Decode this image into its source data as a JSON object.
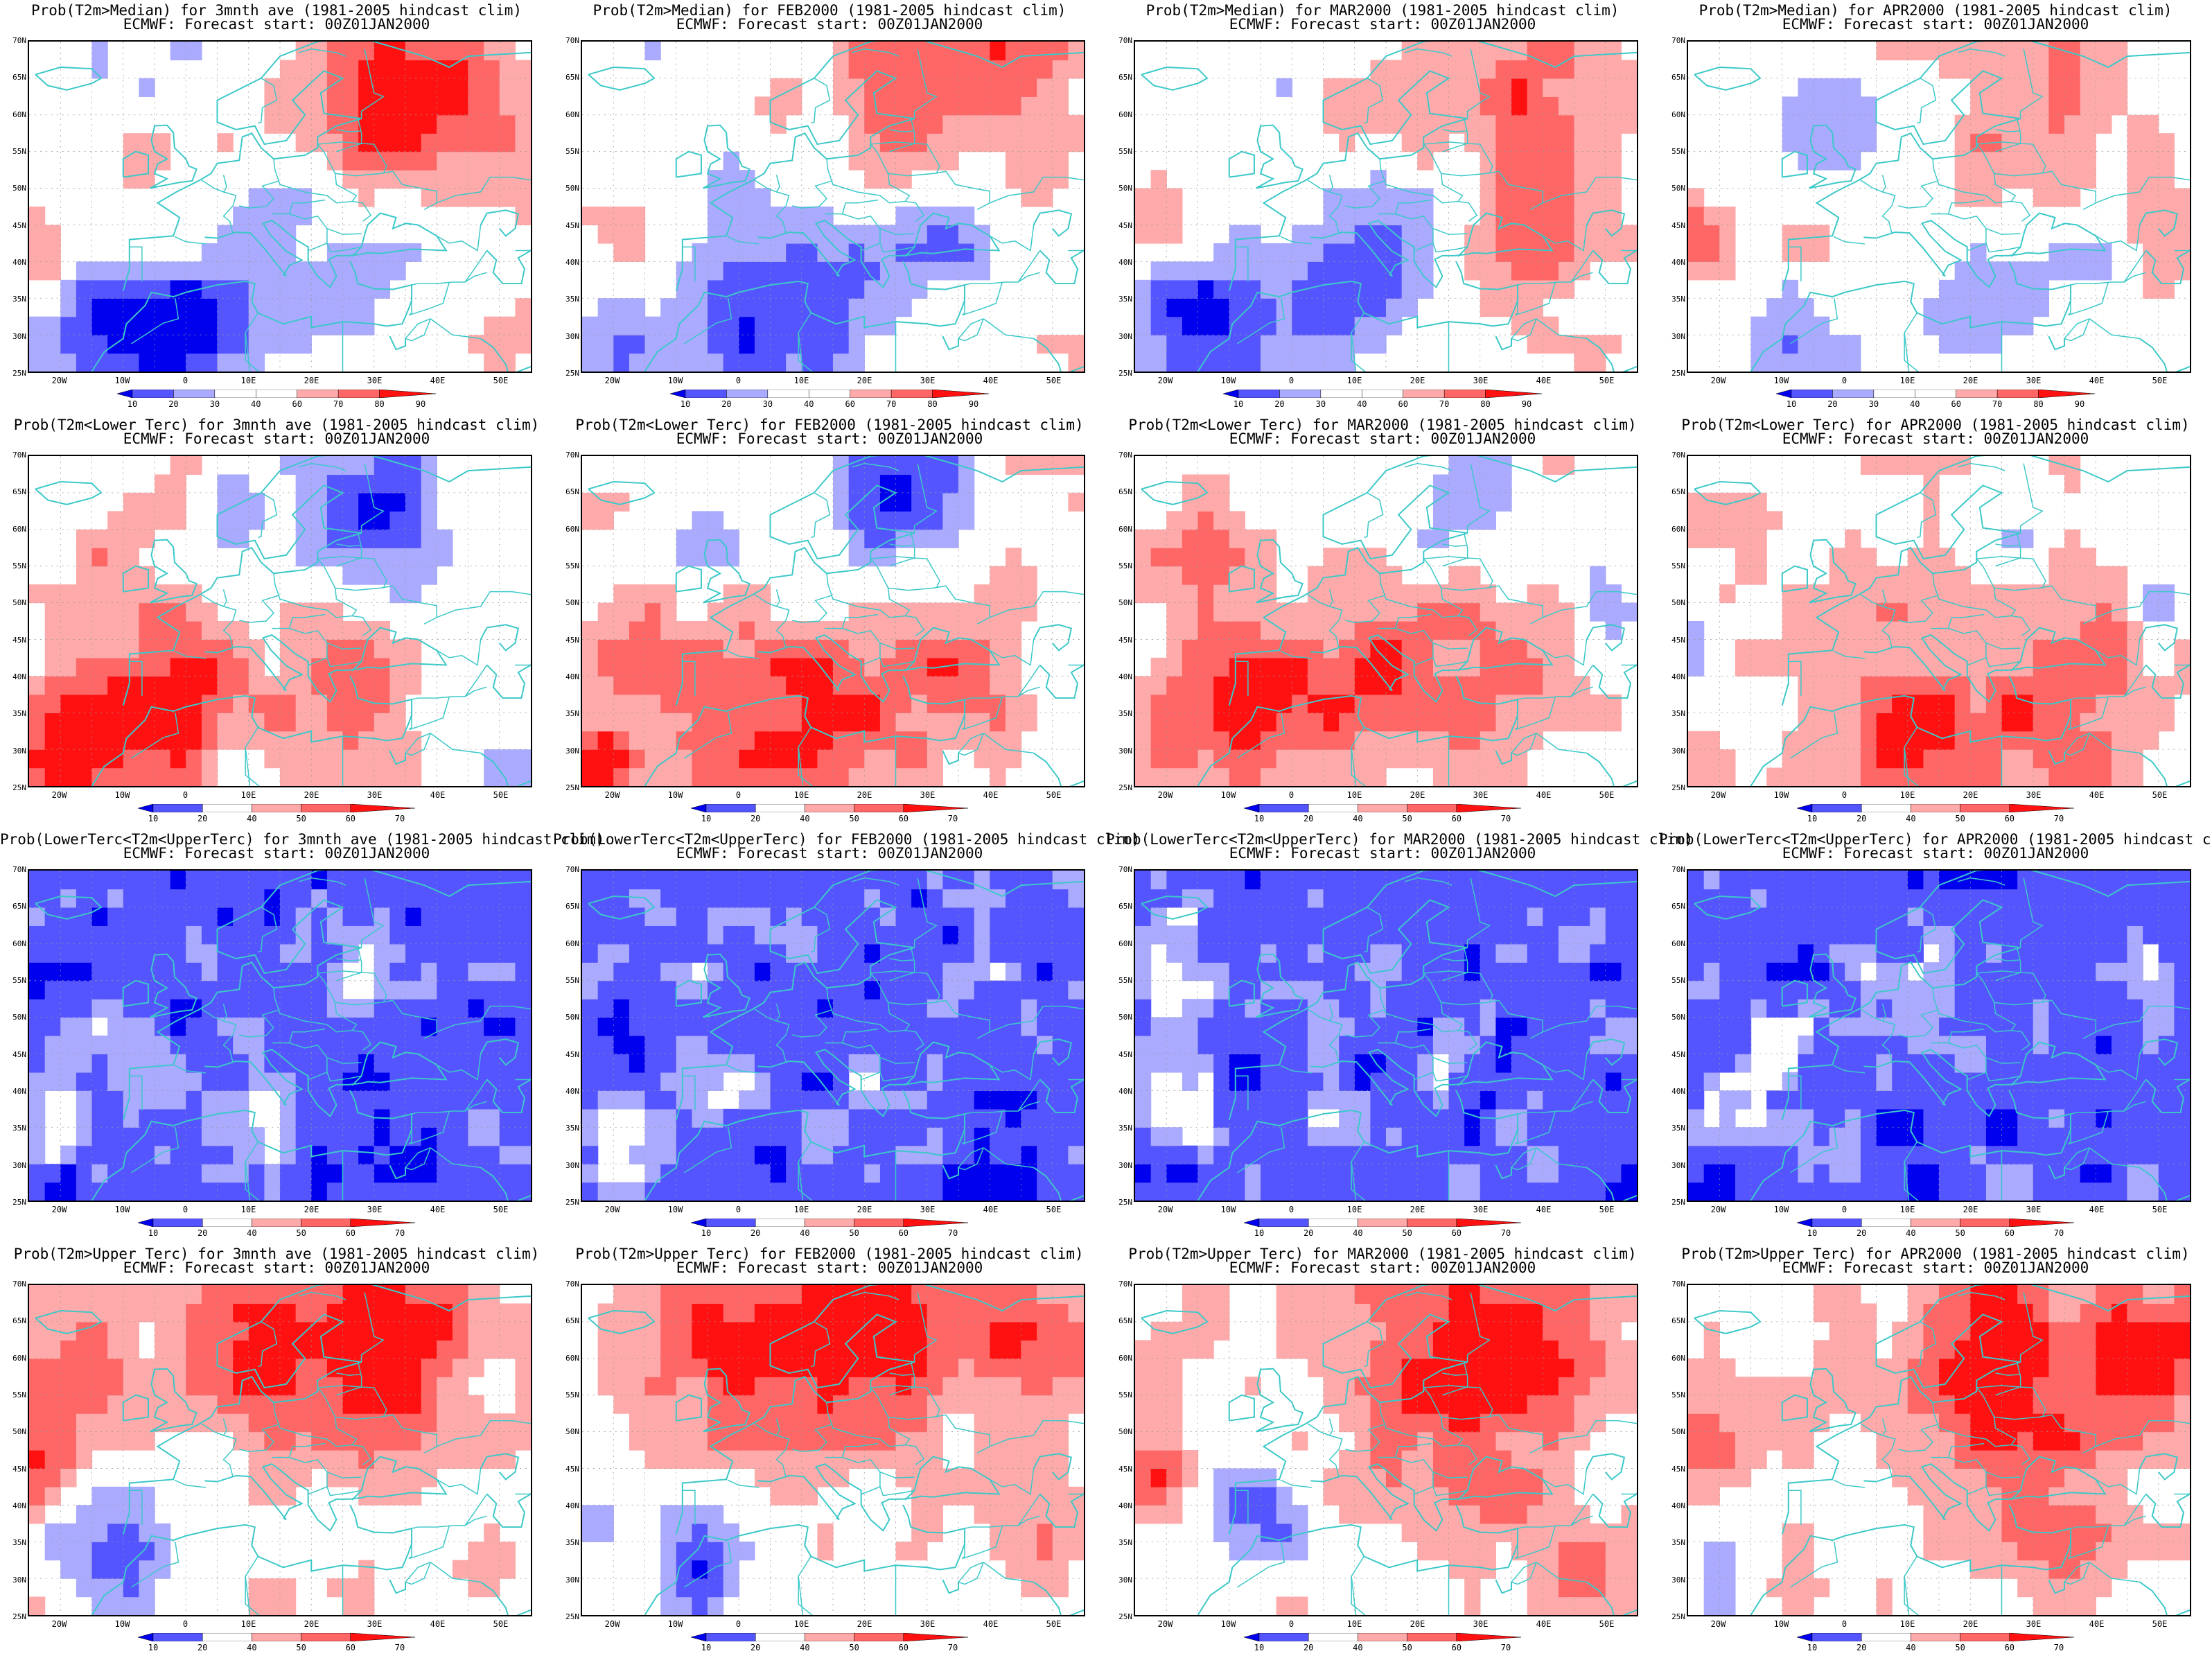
{
  "colors": {
    "blue_dark": "#0000ee",
    "blue_mid": "#5555ff",
    "blue_light": "#aaaaff",
    "red_light": "#ffaaaa",
    "red_mid": "#ff6666",
    "red_dark": "#ff1111",
    "coast": "#3cc8c8"
  },
  "lat_ticks": [
    "70N",
    "65N",
    "60N",
    "55N",
    "50N",
    "45N",
    "40N",
    "35N",
    "30N",
    "25N"
  ],
  "lon_ticks": [
    "20W",
    "10W",
    "0",
    "10E",
    "20E",
    "30E",
    "40E",
    "50E"
  ],
  "colorbars": {
    "median": [
      "10",
      "20",
      "30",
      "40",
      "60",
      "70",
      "80",
      "90"
    ],
    "tercile": [
      "10",
      "20",
      "40",
      "50",
      "60",
      "70"
    ]
  },
  "title_line2": "ECMWF: Forecast start: 00Z01JAN2000",
  "rows": [
    {
      "id": "median",
      "colorbar": "median",
      "titles": [
        "Prob(T2m>Median) for 3mnth ave (1981-2005 hindcast clim)",
        "Prob(T2m>Median) for FEB2000 (1981-2005 hindcast clim)",
        "Prob(T2m>Median) for MAR2000 (1981-2005 hindcast clim)",
        "Prob(T2m>Median) for APR2000 (1981-2005 hindcast clim)"
      ]
    },
    {
      "id": "lower",
      "colorbar": "tercile",
      "titles": [
        "Prob(T2m<Lower Terc) for 3mnth ave (1981-2005 hindcast clim)",
        "Prob(T2m<Lower Terc) for FEB2000 (1981-2005 hindcast clim)",
        "Prob(T2m<Lower Terc) for MAR2000 (1981-2005 hindcast clim)",
        "Prob(T2m<Lower Terc) for APR2000 (1981-2005 hindcast clim)"
      ]
    },
    {
      "id": "middle",
      "colorbar": "tercile",
      "titles": [
        "Prob(LowerTerc<T2m<UpperTerc) for 3mnth ave (1981-2005 hindcast clim)",
        "Prob(LowerTerc<T2m<UpperTerc) for FEB2000 (1981-2005 hindcast clim)",
        "Prob(LowerTerc<T2m<UpperTerc) for MAR2000 (1981-2005 hindcast clim)",
        "Prob(LowerTerc<T2m<UpperTerc) for APR2000 (1981-2005 hindcast clim)"
      ]
    },
    {
      "id": "upper",
      "colorbar": "tercile",
      "titles": [
        "Prob(T2m>Upper Terc) for 3mnth ave (1981-2005 hindcast clim)",
        "Prob(T2m>Upper Terc) for FEB2000 (1981-2005 hindcast clim)",
        "Prob(T2m>Upper Terc) for MAR2000 (1981-2005 hindcast clim)",
        "Prob(T2m>Upper Terc) for APR2000 (1981-2005 hindcast clim)"
      ]
    }
  ]
}
